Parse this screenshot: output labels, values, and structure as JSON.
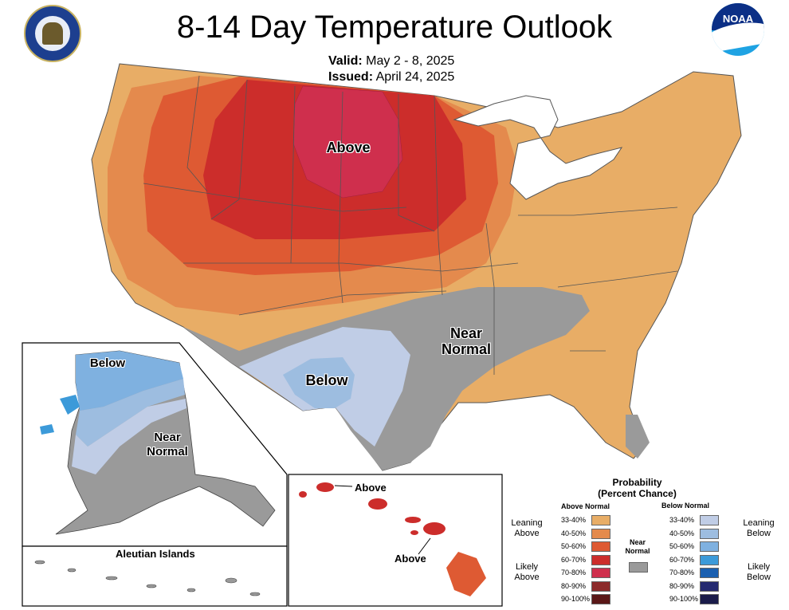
{
  "title": "8-14 Day Temperature Outlook",
  "valid_label": "Valid:",
  "valid_value": "May 2 - 8, 2025",
  "issued_label": "Issued:",
  "issued_value": "April 24, 2025",
  "logos": {
    "left": "dept-of-commerce-seal",
    "right": "noaa-logo",
    "right_text": "NOAA"
  },
  "map_labels": {
    "conus_above": "Above",
    "conus_near_l1": "Near",
    "conus_near_l2": "Normal",
    "conus_below": "Below",
    "ak_below": "Below",
    "ak_near_l1": "Near",
    "ak_near_l2": "Normal",
    "aleutian": "Aleutian Islands",
    "hi_above_1": "Above",
    "hi_above_2": "Above"
  },
  "legend": {
    "title_l1": "Probability",
    "title_l2": "(Percent Chance)",
    "above_header": "Above Normal",
    "below_header": "Below Normal",
    "near_l1": "Near",
    "near_l2": "Normal",
    "leaning_above_l1": "Leaning",
    "leaning_above_l2": "Above",
    "likely_above_l1": "Likely",
    "likely_above_l2": "Above",
    "leaning_below_l1": "Leaning",
    "leaning_below_l2": "Below",
    "likely_below_l1": "Likely",
    "likely_below_l2": "Below",
    "above": [
      {
        "range": "33-40%",
        "color": "#e8ad66"
      },
      {
        "range": "40-50%",
        "color": "#e48a4d"
      },
      {
        "range": "50-60%",
        "color": "#de5a33"
      },
      {
        "range": "60-70%",
        "color": "#cc2d2b"
      },
      {
        "range": "70-80%",
        "color": "#cf2f4d"
      },
      {
        "range": "80-90%",
        "color": "#8c2a2a"
      },
      {
        "range": "90-100%",
        "color": "#5a1717"
      }
    ],
    "below": [
      {
        "range": "33-40%",
        "color": "#c0cde6"
      },
      {
        "range": "40-50%",
        "color": "#9dbde0"
      },
      {
        "range": "50-60%",
        "color": "#7fb1e0"
      },
      {
        "range": "60-70%",
        "color": "#3c9ad9"
      },
      {
        "range": "70-80%",
        "color": "#1a5fb0"
      },
      {
        "range": "80-90%",
        "color": "#252a70"
      },
      {
        "range": "90-100%",
        "color": "#1b1c4a"
      }
    ],
    "near_color": "#9a9a9a"
  }
}
